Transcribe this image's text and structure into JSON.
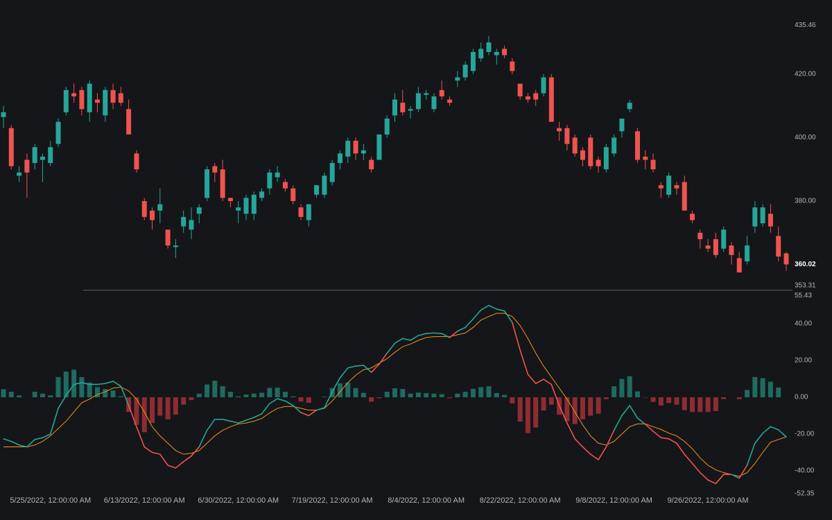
{
  "chart_data": [
    {
      "type": "candlestick",
      "color_up": "#26a69a",
      "color_down": "#ef5350",
      "ylim": [
        352.02,
        443.39
      ],
      "yticks": [
        435.46,
        {
          "value": 420,
          "label": "420.00"
        },
        {
          "value": 400,
          "label": "400.00"
        },
        {
          "value": 380,
          "label": "380.00"
        },
        353.31
      ],
      "open": [
        406.5,
        403,
        388,
        393,
        392,
        393,
        392,
        398,
        408,
        414,
        415,
        408,
        412,
        407,
        415,
        414,
        409,
        395,
        380,
        377,
        377,
        371,
        365.5,
        372,
        371,
        376,
        381,
        391,
        390,
        381,
        377,
        376,
        376,
        381,
        384,
        387.5,
        386,
        384,
        378,
        374,
        382,
        382,
        386,
        392,
        394,
        399,
        395,
        393,
        393,
        401,
        407,
        411,
        408.5,
        409,
        413.5,
        409,
        415,
        412,
        418,
        419,
        421,
        425,
        427,
        426,
        428,
        424,
        417,
        413,
        414,
        414,
        419,
        403,
        403,
        400,
        396,
        400,
        393,
        390,
        395,
        402,
        409,
        402,
        394,
        393,
        385,
        382,
        385,
        386,
        376,
        370,
        366,
        368,
        365,
        366,
        362,
        361,
        372,
        373,
        376,
        369,
        363.5
      ],
      "high": [
        410,
        404,
        391,
        395,
        398,
        395,
        399,
        406,
        416,
        417,
        416,
        418,
        414,
        416,
        417,
        416,
        412,
        396,
        381,
        378,
        384,
        371,
        368,
        377,
        378,
        379,
        391,
        392,
        393,
        381,
        380,
        382,
        383,
        384,
        390,
        391,
        387,
        385,
        379,
        379,
        385,
        389,
        393,
        396,
        400,
        400,
        398,
        394,
        401,
        407,
        414,
        415,
        410,
        416,
        415,
        414,
        418,
        413,
        421,
        424,
        428,
        430,
        432,
        428,
        429,
        425,
        417,
        414,
        415,
        420,
        420,
        405,
        404,
        401,
        397,
        401,
        394,
        398,
        401,
        406,
        412,
        403,
        396,
        395,
        386,
        389,
        386,
        388,
        377,
        371,
        368,
        370,
        372,
        367,
        364,
        369,
        380,
        379,
        379,
        372,
        364
      ],
      "low": [
        403,
        390,
        386,
        381,
        390,
        386,
        391,
        397,
        407,
        411,
        407,
        405,
        408,
        405,
        409,
        410,
        401,
        389,
        374,
        371,
        373,
        365,
        362,
        370,
        368,
        373,
        380,
        386,
        380,
        378,
        373,
        374,
        374,
        380,
        382,
        386,
        383,
        379,
        374,
        372,
        381,
        381,
        385,
        390,
        392,
        393,
        393,
        389,
        393,
        400,
        405,
        407,
        406,
        408,
        412,
        408,
        412,
        410,
        416,
        418,
        420,
        424,
        426,
        423,
        425,
        420,
        412,
        411,
        410,
        413,
        405,
        399,
        396,
        394,
        391,
        390,
        389,
        389,
        394,
        400,
        408,
        392,
        390,
        389,
        381,
        381,
        382,
        377,
        373,
        365,
        364,
        362,
        364,
        360,
        357.5,
        360,
        370,
        372,
        370,
        361,
        358
      ],
      "close": [
        408,
        391,
        389,
        389,
        397,
        394,
        397,
        405,
        415,
        413,
        409,
        417,
        411,
        415,
        411,
        411,
        401,
        390,
        375,
        374,
        379,
        366,
        366,
        375,
        374,
        378,
        390,
        389,
        381,
        380,
        378,
        381,
        382,
        383,
        389,
        389,
        384,
        380,
        375,
        379,
        385,
        388,
        392,
        395,
        399,
        395,
        396,
        390,
        401,
        406,
        412,
        408,
        409,
        414,
        414,
        413,
        413,
        411,
        419,
        423,
        427,
        428,
        430,
        427,
        426,
        421,
        413,
        412,
        412,
        419,
        405,
        402,
        398,
        395,
        393,
        391,
        391,
        397,
        400,
        406,
        411,
        393,
        393,
        390,
        384,
        388,
        384,
        377,
        374,
        368,
        365,
        363,
        371,
        363,
        357.5,
        366,
        378,
        378,
        372,
        362.5,
        360.02
      ]
    },
    {
      "type": "macd",
      "categories": [
        null,
        null,
        null,
        null,
        null,
        null,
        "5/25/2022, 12:00:00 AM",
        null,
        null,
        null,
        null,
        null,
        null,
        null,
        null,
        null,
        null,
        null,
        "6/13/2022, 12:00:00 AM",
        null,
        null,
        null,
        null,
        null,
        null,
        null,
        null,
        null,
        null,
        null,
        "6/30/2022, 12:00:00 AM",
        null,
        null,
        null,
        null,
        null,
        null,
        null,
        null,
        null,
        null,
        null,
        "7/19/2022, 12:00:00 AM",
        null,
        null,
        null,
        null,
        null,
        null,
        null,
        null,
        null,
        null,
        null,
        "8/4/2022, 12:00:00 AM",
        null,
        null,
        null,
        null,
        null,
        null,
        null,
        null,
        null,
        null,
        null,
        "8/22/2022, 12:00:00 AM",
        null,
        null,
        null,
        null,
        null,
        null,
        null,
        null,
        null,
        null,
        null,
        "9/8/2022, 12:00:00 AM",
        null,
        null,
        null,
        null,
        null,
        null,
        null,
        null,
        null,
        null,
        null,
        "9/26/2022, 12:00:00 AM",
        null,
        null,
        null,
        null,
        null,
        null,
        null,
        null,
        null,
        null
      ],
      "ylim": [
        -52.45,
        57.74
      ],
      "yticks": [
        55.43,
        {
          "value": 40,
          "label": "40.00"
        },
        {
          "value": 20,
          "label": "20.00"
        },
        {
          "value": 0,
          "label": "0.00"
        },
        {
          "value": -20,
          "label": "-20.00"
        },
        {
          "value": -40,
          "label": "-40.00"
        },
        -52.35
      ],
      "series": [
        {
          "color": "#ef5350",
          "color_above": "#26a69a",
          "values": [
            -22.6,
            -24,
            -26,
            -27,
            -23,
            -22,
            -20,
            -6,
            1,
            7,
            8,
            7,
            7,
            7.5,
            8.7,
            6,
            -4.5,
            -16,
            -27,
            -30,
            -31,
            -37,
            -38.5,
            -35,
            -32,
            -27,
            -18,
            -12,
            -12,
            -13,
            -14,
            -12.5,
            -11,
            -9,
            -3.4,
            -0.8,
            -2,
            -4.5,
            -8.3,
            -10,
            -7,
            -5.7,
            3,
            10.6,
            16,
            17,
            17.4,
            13.6,
            18,
            24,
            29.4,
            32,
            31,
            33.6,
            34.7,
            35,
            34.7,
            32.5,
            36,
            38,
            42.6,
            47.5,
            50,
            48,
            47,
            40.7,
            25.7,
            12.5,
            7.5,
            9.8,
            7,
            -4.5,
            -14,
            -22.6,
            -27,
            -31,
            -34,
            -27,
            -18,
            -10,
            -4.5,
            -11.3,
            -14.7,
            -18.5,
            -22,
            -22.6,
            -25,
            -31,
            -36,
            -41,
            -45,
            -47,
            -42,
            -42,
            -44,
            -37,
            -25,
            -19.6,
            -16,
            -17.7,
            -21.5
          ]
        },
        {
          "color": "#f7931a",
          "values": [
            -27,
            -27,
            -27,
            -27,
            -26,
            -24,
            -21,
            -17,
            -13,
            -8,
            -3,
            -1,
            1.5,
            3,
            5,
            5.5,
            3.5,
            -1,
            -8,
            -16,
            -21,
            -25,
            -29,
            -31,
            -30.5,
            -29,
            -25,
            -21,
            -18,
            -16,
            -14.5,
            -14,
            -13,
            -11.5,
            -8.5,
            -6,
            -5,
            -5,
            -6,
            -7,
            -7,
            -6,
            -2,
            3,
            8,
            12,
            15,
            16,
            18.5,
            21,
            24.5,
            27.5,
            29,
            31,
            32.5,
            33,
            33,
            33,
            34,
            35,
            38,
            42,
            44,
            45.7,
            45.7,
            44,
            39,
            32,
            24,
            17,
            11,
            5,
            -1,
            -8,
            -15,
            -21,
            -25,
            -26,
            -24,
            -20,
            -16,
            -14.5,
            -14.5,
            -16,
            -17.5,
            -19.5,
            -21,
            -24,
            -28,
            -33,
            -37,
            -39.5,
            -41,
            -42,
            -43,
            -41,
            -36,
            -30,
            -24.5,
            -23,
            -21.5
          ]
        }
      ],
      "histogram": {
        "color_up": "#1f6b61",
        "color_down": "#8e2c34",
        "values": [
          4.4,
          3,
          1,
          0,
          3,
          2,
          1,
          11,
          14,
          15,
          11,
          8,
          5.5,
          4.5,
          3.7,
          0.5,
          -8,
          -15,
          -19,
          -14,
          -10,
          -12,
          -9.5,
          -4,
          -1.5,
          2,
          7,
          9,
          6,
          3,
          0.5,
          1.5,
          2,
          2.5,
          5.1,
          5.2,
          3,
          0.5,
          -2.3,
          -3,
          0,
          0.3,
          5,
          7.6,
          8,
          5,
          2.4,
          -2.4,
          -0.5,
          3,
          4.9,
          4.5,
          2,
          2.6,
          2.2,
          2,
          1.7,
          -0.5,
          2,
          3,
          4.6,
          5.5,
          6,
          2.3,
          1.3,
          -3.3,
          -13.3,
          -19.5,
          -16.5,
          -7.2,
          -4,
          -9.5,
          -13,
          -14.6,
          -12,
          -10,
          -9,
          -1,
          6,
          10,
          11.5,
          3.2,
          -0.2,
          -2.5,
          -4.5,
          -3.1,
          -4,
          -7,
          -8,
          -8,
          -8,
          -7.5,
          -1,
          0,
          -1,
          4,
          11,
          10.4,
          8.5,
          5.3,
          0
        ]
      }
    }
  ]
}
